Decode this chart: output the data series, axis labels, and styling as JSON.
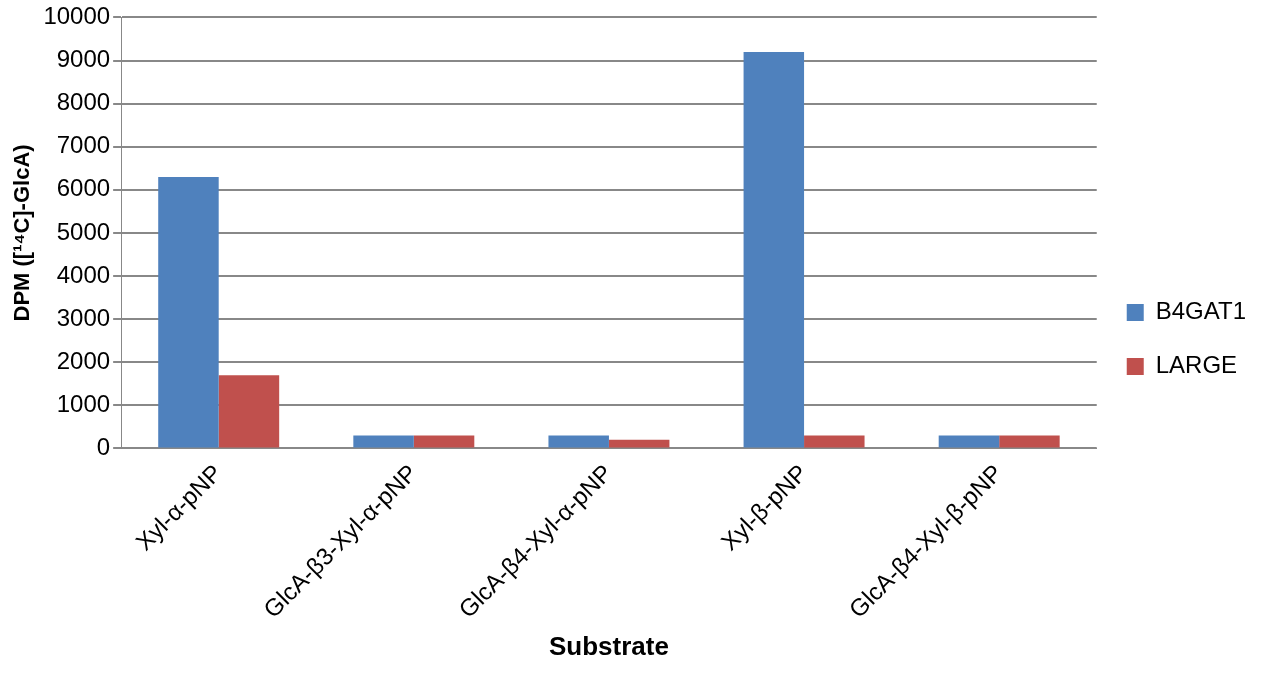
{
  "chart_data": {
    "type": "bar",
    "xlabel": "Substrate",
    "ylabel": "DPM ([¹⁴C]-GlcA)",
    "categories": [
      "Xyl-α-pNP",
      "GlcA-β3-Xyl-α-pNP",
      "GlcA-β4-Xyl-α-pNP",
      "Xyl-β-pNP",
      "GlcA-β4-Xyl-β-pNP"
    ],
    "series": [
      {
        "name": "B4GAT1",
        "color": "#4f81bd",
        "values": [
          6300,
          300,
          300,
          9200,
          300
        ]
      },
      {
        "name": "LARGE",
        "color": "#c0504d",
        "values": [
          1700,
          300,
          200,
          300,
          300
        ]
      }
    ],
    "ylim": [
      0,
      10000
    ],
    "yticks": [
      0,
      1000,
      2000,
      3000,
      4000,
      5000,
      6000,
      7000,
      8000,
      9000,
      10000
    ],
    "grid": "y",
    "legend": "right"
  }
}
